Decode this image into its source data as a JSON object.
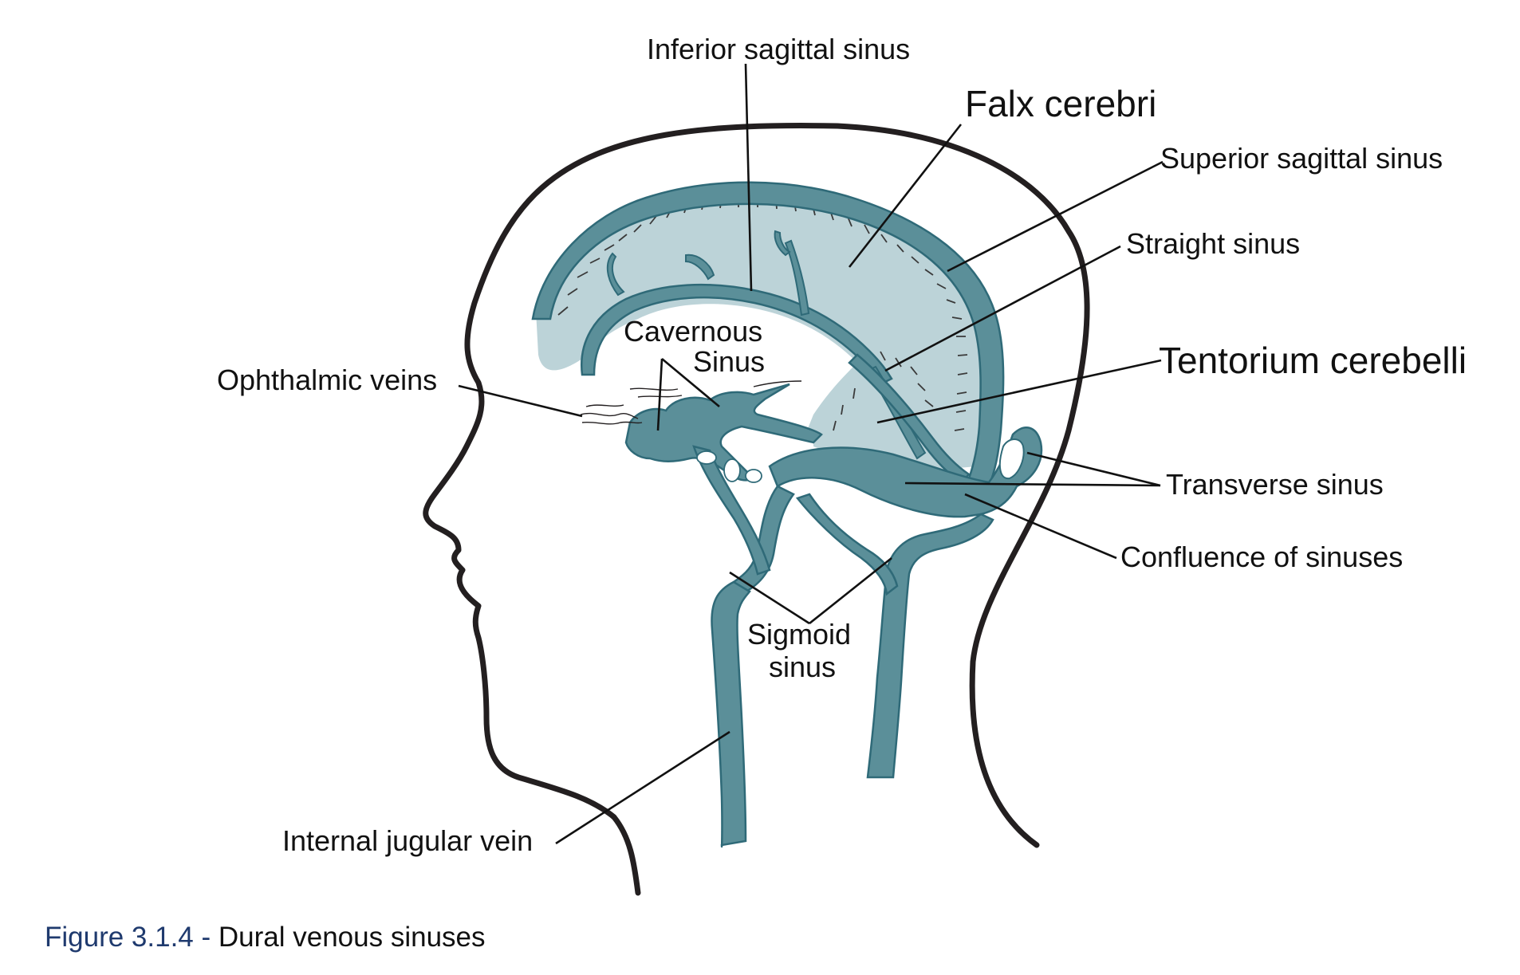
{
  "diagram": {
    "labels": {
      "inferior_sagittal_sinus": "Inferior sagittal sinus",
      "falx_cerebri": "Falx cerebri",
      "superior_sagittal_sinus": "Superior sagittal sinus",
      "straight_sinus": "Straight sinus",
      "tentorium_cerebelli": "Tentorium cerebelli",
      "ophthalmic_veins": "Ophthalmic veins",
      "cavernous_sinus_line1": "Cavernous",
      "cavernous_sinus_line2": "Sinus",
      "transverse_sinus": "Transverse sinus",
      "confluence_of_sinuses": "Confluence of sinuses",
      "sigmoid_sinus_line1": "Sigmoid",
      "sigmoid_sinus_line2": "sinus",
      "internal_jugular_vein": "Internal jugular vein"
    },
    "colors": {
      "vessel_fill": "#5b8f99",
      "vessel_stroke": "#2f6a78",
      "membrane_fill": "#bcd3d8",
      "outline": "#231f20",
      "text": "#111111",
      "caption_number": "#1f3a6e"
    }
  },
  "caption": {
    "number": "Figure 3.1.4",
    "separator": " - ",
    "title": "Dural venous sinuses"
  }
}
